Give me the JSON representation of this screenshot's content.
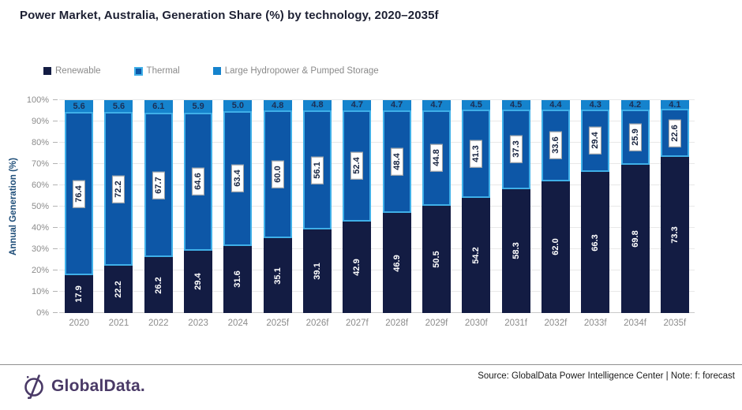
{
  "title": "Power Market, Australia, Generation Share (%) by technology, 2020–2035f",
  "chart_data": {
    "type": "bar",
    "stacked": true,
    "title": "Power Market, Australia, Generation Share (%) by technology, 2020–2035f",
    "ylabel": "Annual Generation (%)",
    "xlabel": "",
    "ylim": [
      0,
      100
    ],
    "ytick_step": 10,
    "ytick_suffix": "%",
    "grid": "horizontal",
    "legend_position": "top-left",
    "categories": [
      "2020",
      "2021",
      "2022",
      "2023",
      "2024",
      "2025f",
      "2026f",
      "2027f",
      "2028f",
      "2029f",
      "2030f",
      "2031f",
      "2032f",
      "2033f",
      "2034f",
      "2035f"
    ],
    "series": [
      {
        "name": "Renewable",
        "color": "#131c43",
        "label_style": "white-rotated",
        "values": [
          17.9,
          22.2,
          26.2,
          29.4,
          31.6,
          35.1,
          39.1,
          42.9,
          46.9,
          50.5,
          54.2,
          58.3,
          62.0,
          66.3,
          69.8,
          73.3
        ]
      },
      {
        "name": "Thermal",
        "color": "#0d57a7",
        "border_color": "#3fafe8",
        "label_style": "boxed-rotated",
        "values": [
          76.4,
          72.2,
          67.7,
          64.6,
          63.4,
          60.0,
          56.1,
          52.4,
          48.4,
          44.8,
          41.3,
          37.3,
          33.6,
          29.4,
          25.9,
          22.6
        ]
      },
      {
        "name": "Large Hydropower & Pumped Storage",
        "color": "#1583cd",
        "label_style": "dark-horizontal",
        "values": [
          5.6,
          5.6,
          6.1,
          5.9,
          5.0,
          4.8,
          4.8,
          4.7,
          4.7,
          4.7,
          4.5,
          4.5,
          4.4,
          4.3,
          4.2,
          4.1
        ]
      }
    ]
  },
  "footer": {
    "logo_text": "GlobalData.",
    "source_note": "Source: GlobalData Power Intelligence Center | Note: f: forecast"
  },
  "colors": {
    "axis_label_blue": "#1f4e79",
    "tick_gray": "#8c8c8c",
    "logo_purple": "#4a3a67"
  }
}
